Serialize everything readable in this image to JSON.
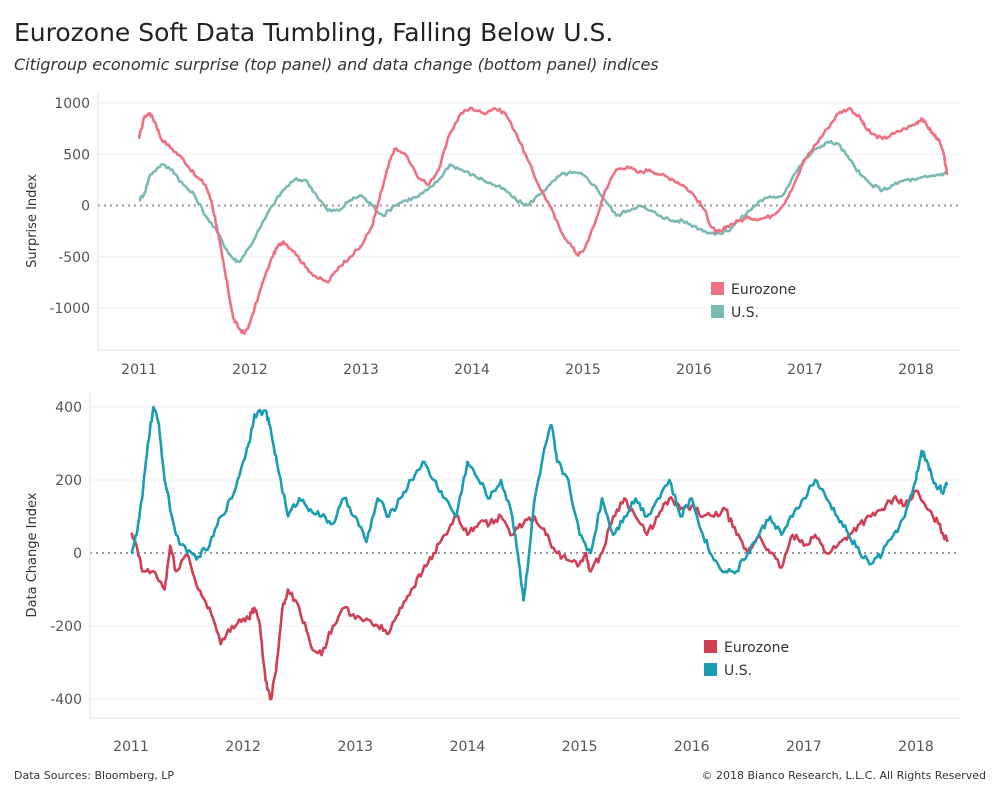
{
  "header": {
    "title": "Eurozone Soft Data Tumbling, Falling Below U.S.",
    "subtitle": "Citigroup economic surprise (top panel) and data change (bottom panel) indices"
  },
  "footer": {
    "source": "Data Sources: Bloomberg, LP",
    "copyright": "© 2018 Bianco Research, L.L.C. All Rights Reserved"
  },
  "chart_data": [
    {
      "type": "line",
      "panel": "top",
      "title": "",
      "xlabel": "",
      "ylabel": "Surprise Index",
      "xlim": [
        2010.8,
        2018.4
      ],
      "ylim": [
        -1380,
        1080
      ],
      "y_ticks": [
        1000,
        500,
        0,
        -500,
        -1000
      ],
      "x_ticks": [
        "2011",
        "2012",
        "2013",
        "2014",
        "2015",
        "2016",
        "2017",
        "2018"
      ],
      "zero_line": true,
      "grid": "horizontal",
      "legend_position": "lower-right",
      "series": [
        {
          "name": "Eurozone",
          "color": "#EE7283",
          "x": [
            2011.0,
            2011.05,
            2011.1,
            2011.15,
            2011.2,
            2011.3,
            2011.4,
            2011.5,
            2011.6,
            2011.65,
            2011.7,
            2011.75,
            2011.8,
            2011.85,
            2011.9,
            2011.95,
            2012.0,
            2012.1,
            2012.2,
            2012.25,
            2012.3,
            2012.4,
            2012.5,
            2012.6,
            2012.7,
            2012.8,
            2012.9,
            2013.0,
            2013.1,
            2013.15,
            2013.2,
            2013.25,
            2013.3,
            2013.4,
            2013.5,
            2013.6,
            2013.7,
            2013.8,
            2013.9,
            2014.0,
            2014.1,
            2014.2,
            2014.3,
            2014.4,
            2014.5,
            2014.6,
            2014.7,
            2014.8,
            2014.9,
            2014.95,
            2015.0,
            2015.1,
            2015.2,
            2015.3,
            2015.4,
            2015.5,
            2015.6,
            2015.7,
            2015.8,
            2015.9,
            2016.0,
            2016.1,
            2016.15,
            2016.2,
            2016.25,
            2016.3,
            2016.4,
            2016.5,
            2016.6,
            2016.7,
            2016.8,
            2016.9,
            2017.0,
            2017.1,
            2017.2,
            2017.3,
            2017.4,
            2017.5,
            2017.55,
            2017.6,
            2017.7,
            2017.8,
            2017.9,
            2018.0,
            2018.05,
            2018.1,
            2018.15,
            2018.2,
            2018.25,
            2018.28
          ],
          "y": [
            650,
            870,
            900,
            800,
            650,
            550,
            450,
            300,
            200,
            50,
            -200,
            -500,
            -800,
            -1100,
            -1200,
            -1250,
            -1150,
            -800,
            -500,
            -400,
            -350,
            -450,
            -600,
            -700,
            -750,
            -600,
            -500,
            -400,
            -200,
            0,
            200,
            400,
            550,
            500,
            300,
            200,
            350,
            700,
            900,
            950,
            900,
            950,
            900,
            700,
            450,
            200,
            0,
            -250,
            -400,
            -480,
            -450,
            -200,
            150,
            350,
            380,
            320,
            350,
            300,
            260,
            200,
            100,
            -50,
            -200,
            -260,
            -250,
            -200,
            -150,
            -120,
            -130,
            -100,
            0,
            200,
            450,
            600,
            750,
            900,
            950,
            850,
            750,
            700,
            650,
            700,
            750,
            800,
            850,
            780,
            700,
            650,
            500,
            300
          ]
        },
        {
          "name": "U.S.",
          "color": "#7ABAB2",
          "x": [
            2011.0,
            2011.05,
            2011.1,
            2011.2,
            2011.3,
            2011.4,
            2011.5,
            2011.6,
            2011.7,
            2011.8,
            2011.85,
            2011.9,
            2012.0,
            2012.1,
            2012.2,
            2012.3,
            2012.4,
            2012.5,
            2012.6,
            2012.7,
            2012.8,
            2012.9,
            2013.0,
            2013.1,
            2013.2,
            2013.3,
            2013.4,
            2013.5,
            2013.6,
            2013.7,
            2013.8,
            2013.9,
            2014.0,
            2014.1,
            2014.2,
            2014.3,
            2014.4,
            2014.5,
            2014.6,
            2014.7,
            2014.8,
            2014.9,
            2015.0,
            2015.1,
            2015.2,
            2015.3,
            2015.4,
            2015.5,
            2015.6,
            2015.7,
            2015.8,
            2015.9,
            2016.0,
            2016.1,
            2016.2,
            2016.3,
            2016.4,
            2016.5,
            2016.6,
            2016.7,
            2016.8,
            2016.9,
            2017.0,
            2017.1,
            2017.2,
            2017.3,
            2017.4,
            2017.5,
            2017.6,
            2017.7,
            2017.8,
            2017.9,
            2018.0,
            2018.1,
            2018.2,
            2018.28
          ],
          "y": [
            50,
            120,
            300,
            400,
            350,
            200,
            100,
            -100,
            -250,
            -450,
            -520,
            -550,
            -400,
            -200,
            0,
            150,
            250,
            250,
            100,
            -50,
            -50,
            50,
            100,
            0,
            -100,
            0,
            50,
            80,
            150,
            250,
            400,
            350,
            300,
            250,
            200,
            150,
            50,
            0,
            100,
            200,
            300,
            320,
            300,
            200,
            50,
            -100,
            -50,
            0,
            -50,
            -100,
            -150,
            -150,
            -200,
            -250,
            -280,
            -250,
            -150,
            -50,
            50,
            80,
            100,
            300,
            450,
            550,
            620,
            600,
            450,
            300,
            200,
            150,
            200,
            250,
            250,
            280,
            300,
            320
          ]
        }
      ]
    },
    {
      "type": "line",
      "panel": "bottom",
      "title": "",
      "xlabel": "",
      "ylabel": "Data Change Index",
      "xlim": [
        2010.8,
        2018.4
      ],
      "ylim": [
        -450,
        420
      ],
      "y_ticks": [
        400,
        200,
        0,
        -200,
        -400
      ],
      "x_ticks": [
        "2011",
        "2012",
        "2013",
        "2014",
        "2015",
        "2016",
        "2017",
        "2018"
      ],
      "zero_line": true,
      "grid": "horizontal",
      "legend_position": "lower-center",
      "series": [
        {
          "name": "Eurozone",
          "color": "#CF3F55",
          "x": [
            2011.0,
            2011.05,
            2011.1,
            2011.2,
            2011.3,
            2011.35,
            2011.4,
            2011.5,
            2011.6,
            2011.7,
            2011.8,
            2011.9,
            2012.0,
            2012.05,
            2012.1,
            2012.15,
            2012.2,
            2012.25,
            2012.3,
            2012.35,
            2012.4,
            2012.5,
            2012.6,
            2012.7,
            2012.8,
            2012.9,
            2013.0,
            2013.1,
            2013.2,
            2013.3,
            2013.4,
            2013.5,
            2013.6,
            2013.7,
            2013.8,
            2013.9,
            2014.0,
            2014.1,
            2014.2,
            2014.3,
            2014.4,
            2014.5,
            2014.6,
            2014.7,
            2014.8,
            2014.9,
            2015.0,
            2015.05,
            2015.1,
            2015.2,
            2015.3,
            2015.4,
            2015.5,
            2015.6,
            2015.7,
            2015.8,
            2015.9,
            2016.0,
            2016.1,
            2016.2,
            2016.3,
            2016.4,
            2016.5,
            2016.6,
            2016.7,
            2016.8,
            2016.9,
            2017.0,
            2017.1,
            2017.2,
            2017.3,
            2017.4,
            2017.5,
            2017.6,
            2017.7,
            2017.8,
            2017.9,
            2018.0,
            2018.1,
            2018.2,
            2018.28
          ],
          "y": [
            50,
            20,
            -50,
            -50,
            -100,
            20,
            -50,
            0,
            -100,
            -150,
            -250,
            -200,
            -180,
            -180,
            -150,
            -200,
            -350,
            -400,
            -300,
            -150,
            -100,
            -150,
            -250,
            -280,
            -200,
            -150,
            -180,
            -180,
            -200,
            -220,
            -150,
            -100,
            -50,
            0,
            50,
            100,
            50,
            80,
            80,
            100,
            50,
            80,
            100,
            50,
            0,
            -20,
            -30,
            0,
            -50,
            0,
            100,
            150,
            100,
            50,
            100,
            150,
            120,
            130,
            100,
            100,
            120,
            50,
            0,
            50,
            0,
            -40,
            50,
            20,
            50,
            0,
            20,
            50,
            80,
            100,
            120,
            150,
            130,
            170,
            120,
            80,
            30
          ]
        },
        {
          "name": "U.S.",
          "color": "#1A9DB0",
          "x": [
            2011.0,
            2011.05,
            2011.1,
            2011.15,
            2011.2,
            2011.25,
            2011.3,
            2011.4,
            2011.5,
            2011.6,
            2011.7,
            2011.8,
            2011.9,
            2012.0,
            2012.05,
            2012.1,
            2012.2,
            2012.25,
            2012.3,
            2012.4,
            2012.5,
            2012.6,
            2012.7,
            2012.8,
            2012.9,
            2013.0,
            2013.1,
            2013.2,
            2013.3,
            2013.4,
            2013.5,
            2013.6,
            2013.7,
            2013.8,
            2013.9,
            2014.0,
            2014.1,
            2014.2,
            2014.3,
            2014.4,
            2014.45,
            2014.5,
            2014.55,
            2014.6,
            2014.7,
            2014.75,
            2014.8,
            2014.9,
            2015.0,
            2015.1,
            2015.2,
            2015.3,
            2015.4,
            2015.5,
            2015.6,
            2015.7,
            2015.8,
            2015.9,
            2016.0,
            2016.1,
            2016.2,
            2016.3,
            2016.4,
            2016.5,
            2016.6,
            2016.7,
            2016.8,
            2016.9,
            2017.0,
            2017.1,
            2017.2,
            2017.3,
            2017.4,
            2017.5,
            2017.6,
            2017.7,
            2017.8,
            2017.9,
            2018.0,
            2018.05,
            2018.1,
            2018.15,
            2018.2,
            2018.25,
            2018.28
          ],
          "y": [
            0,
            50,
            150,
            300,
            400,
            350,
            200,
            50,
            0,
            -10,
            20,
            100,
            150,
            250,
            300,
            380,
            390,
            330,
            250,
            100,
            150,
            120,
            100,
            80,
            150,
            100,
            30,
            150,
            100,
            150,
            200,
            250,
            200,
            150,
            100,
            250,
            200,
            150,
            200,
            100,
            0,
            -130,
            0,
            150,
            300,
            350,
            250,
            200,
            50,
            0,
            150,
            50,
            100,
            150,
            100,
            150,
            200,
            100,
            150,
            50,
            -20,
            -50,
            -50,
            0,
            50,
            100,
            50,
            100,
            150,
            200,
            150,
            100,
            50,
            0,
            -30,
            0,
            50,
            100,
            200,
            280,
            250,
            200,
            180,
            170,
            190
          ]
        }
      ]
    }
  ]
}
